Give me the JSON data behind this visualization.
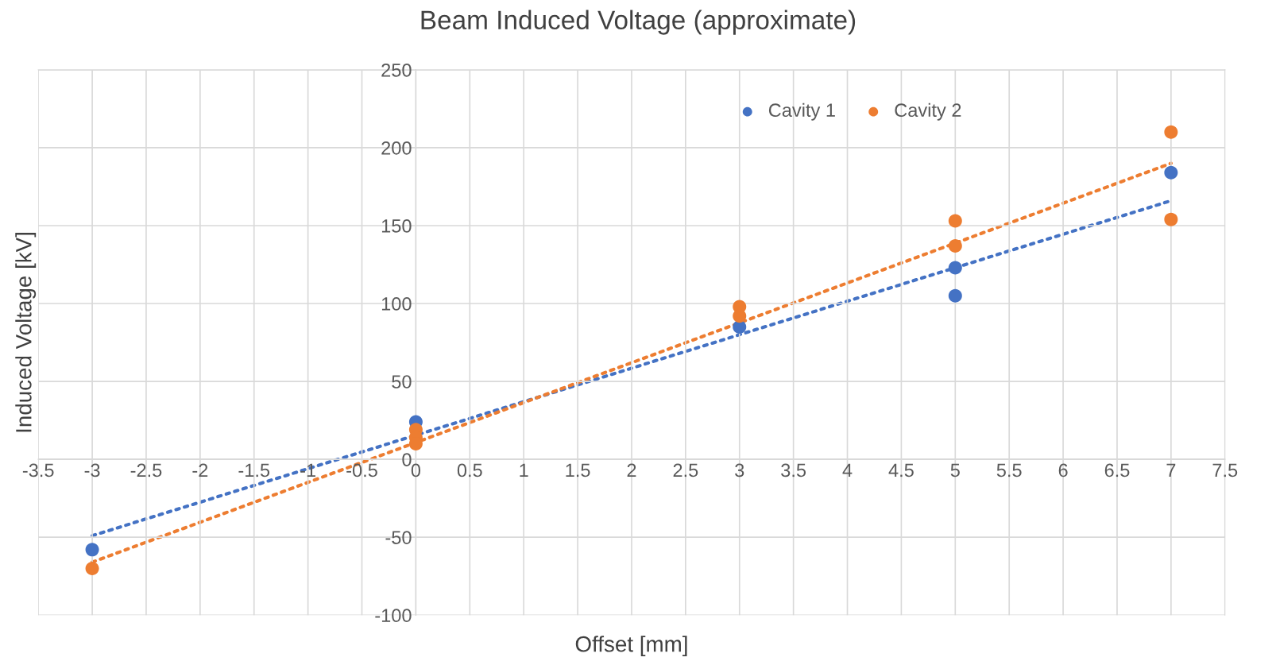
{
  "chart_data": {
    "type": "scatter",
    "title": "Beam Induced Voltage (approximate)",
    "xlabel": "Offset [mm]",
    "ylabel": "Induced Voltage [kV]",
    "series": [
      {
        "name": "Cavity 1",
        "color": "#4472c4",
        "x": [
          -3,
          0,
          3,
          5,
          5,
          7
        ],
        "values": [
          -58,
          24,
          85,
          123,
          105,
          184
        ]
      },
      {
        "name": "Cavity 2",
        "color": "#ed7d31",
        "x": [
          -3,
          0,
          0,
          0,
          3,
          3,
          5,
          5,
          7,
          7
        ],
        "values": [
          -70,
          19,
          14,
          10,
          98,
          92,
          153,
          137,
          210,
          154
        ]
      },
      {
        "type": "line",
        "color": "#4472c4",
        "line_style": "dotted",
        "marker": "none",
        "x": [
          -3,
          7
        ],
        "values": [
          -49,
          166
        ]
      },
      {
        "type": "line",
        "color": "#ed7d31",
        "line_style": "dotted",
        "marker": "none",
        "x": [
          -3,
          7
        ],
        "values": [
          -66,
          190
        ]
      }
    ],
    "marker": "circle",
    "grid": true,
    "legend": "top right",
    "xlim": [
      -3.5,
      7.5
    ],
    "ylim": [
      -100,
      250
    ],
    "xticks": [
      -3.5,
      -3,
      -2.5,
      -2,
      -1.5,
      -1,
      -0.5,
      0,
      0.5,
      1,
      1.5,
      2,
      2.5,
      3,
      3.5,
      4,
      4.5,
      5,
      5.5,
      6,
      6.5,
      7,
      7.5
    ],
    "yticks": [
      -100,
      -50,
      0,
      50,
      100,
      150,
      200,
      250
    ]
  }
}
